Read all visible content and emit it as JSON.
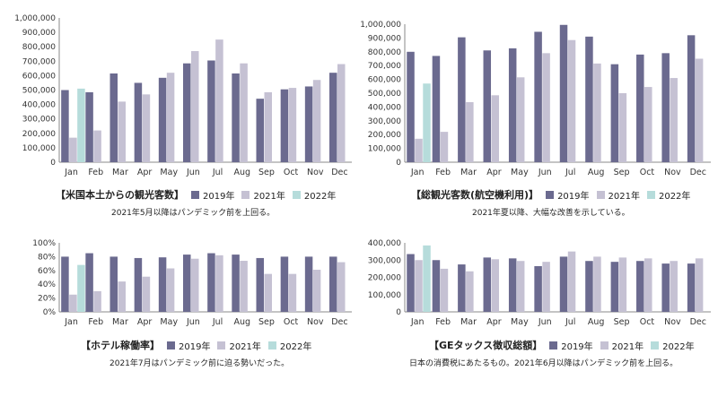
{
  "colors": {
    "2019": "#6b6a8f",
    "2021": "#c5c1d3",
    "2022": "#b6dcdb"
  },
  "chart_data": [
    {
      "type": "bar",
      "title": "【米国本土からの観光客数】",
      "note": "2021年5月以降はパンデミック前を上回る。",
      "categories": [
        "Jan",
        "Feb",
        "Mar",
        "Apr",
        "May",
        "Jun",
        "Jul",
        "Aug",
        "Sep",
        "Oct",
        "Nov",
        "Dec"
      ],
      "ylim": [
        0,
        1000000
      ],
      "yticks": [
        "0",
        "100,000",
        "200,000",
        "300,000",
        "400,000",
        "500,000",
        "600,000",
        "700,000",
        "800,000",
        "900,000",
        "1,000,000"
      ],
      "series": [
        {
          "name": "2019年",
          "values": [
            500000,
            485000,
            615000,
            550000,
            585000,
            685000,
            705000,
            615000,
            440000,
            505000,
            525000,
            620000
          ]
        },
        {
          "name": "2021年",
          "values": [
            170000,
            220000,
            420000,
            470000,
            620000,
            770000,
            850000,
            685000,
            485000,
            515000,
            570000,
            680000
          ]
        },
        {
          "name": "2022年",
          "values": [
            510000,
            null,
            null,
            null,
            null,
            null,
            null,
            null,
            null,
            null,
            null,
            null
          ]
        }
      ]
    },
    {
      "type": "bar",
      "title": "【総観光客数(航空機利用)】",
      "note": "2021年夏以降、大幅な改善を示している。",
      "categories": [
        "Jan",
        "Feb",
        "Mar",
        "Apr",
        "May",
        "Jun",
        "Jul",
        "Aug",
        "Sep",
        "Oct",
        "Nov",
        "Dec"
      ],
      "ylim": [
        0,
        1000000
      ],
      "yticks": [
        "0",
        "100,000",
        "200,000",
        "300,000",
        "400,000",
        "500,000",
        "600,000",
        "700,000",
        "800,000",
        "900,000",
        "1,000,000"
      ],
      "series": [
        {
          "name": "2019年",
          "values": [
            800000,
            770000,
            905000,
            810000,
            825000,
            945000,
            995000,
            910000,
            710000,
            780000,
            790000,
            920000
          ]
        },
        {
          "name": "2021年",
          "values": [
            170000,
            220000,
            435000,
            485000,
            615000,
            790000,
            885000,
            715000,
            500000,
            545000,
            610000,
            750000
          ]
        },
        {
          "name": "2022年",
          "values": [
            570000,
            null,
            null,
            null,
            null,
            null,
            null,
            null,
            null,
            null,
            null,
            null
          ]
        }
      ]
    },
    {
      "type": "bar",
      "title": "【ホテル稼働率】",
      "note": "2021年7月はパンデミック前に迫る勢いだった。",
      "categories": [
        "Jan",
        "Feb",
        "Mar",
        "Apr",
        "May",
        "Jun",
        "Jul",
        "Aug",
        "Sep",
        "Oct",
        "Nov",
        "Dec"
      ],
      "ylim": [
        0,
        100
      ],
      "yticks": [
        "0%",
        "20%",
        "40%",
        "60%",
        "80%",
        "100%"
      ],
      "series": [
        {
          "name": "2019年",
          "values": [
            80,
            85,
            80,
            78,
            79,
            83,
            85,
            83,
            78,
            80,
            80,
            80
          ]
        },
        {
          "name": "2021年",
          "values": [
            25,
            30,
            44,
            51,
            63,
            77,
            82,
            74,
            55,
            55,
            61,
            72
          ]
        },
        {
          "name": "2022年",
          "values": [
            68,
            null,
            null,
            null,
            null,
            null,
            null,
            null,
            null,
            null,
            null,
            null
          ]
        }
      ]
    },
    {
      "type": "bar",
      "title": "【GEタックス徴収総額】",
      "note": "日本の消費税にあたるもの。2021年6月以降はパンデミック前を上回る。",
      "categories": [
        "Jan",
        "Feb",
        "Mar",
        "Apr",
        "May",
        "Jun",
        "Jul",
        "Aug",
        "Sep",
        "Oct",
        "Nov",
        "Dec"
      ],
      "ylim": [
        0,
        400000
      ],
      "yticks": [
        "0",
        "100,000",
        "200,000",
        "300,000",
        "400,000"
      ],
      "series": [
        {
          "name": "2019年",
          "values": [
            335000,
            300000,
            275000,
            315000,
            310000,
            265000,
            320000,
            295000,
            290000,
            295000,
            280000,
            280000
          ]
        },
        {
          "name": "2021年",
          "values": [
            300000,
            250000,
            235000,
            305000,
            295000,
            290000,
            350000,
            320000,
            315000,
            310000,
            295000,
            310000
          ]
        },
        {
          "name": "2022年",
          "values": [
            385000,
            null,
            null,
            null,
            null,
            null,
            null,
            null,
            null,
            null,
            null,
            null
          ]
        }
      ]
    }
  ]
}
